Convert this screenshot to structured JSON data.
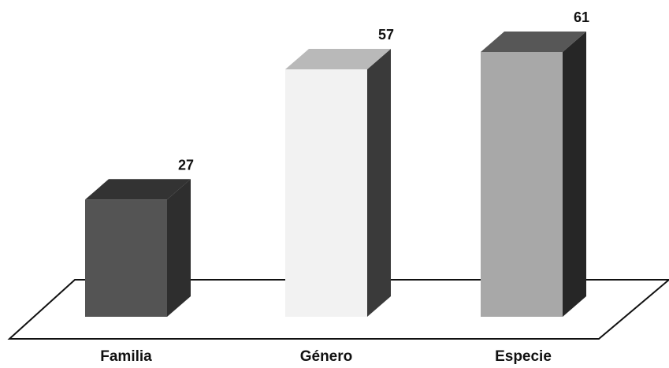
{
  "chart_data": {
    "type": "bar",
    "style": "3d",
    "categories": [
      "Familia",
      "Género",
      "Especie"
    ],
    "values": [
      27,
      57,
      61
    ],
    "data_labels": [
      "27",
      "57",
      "61"
    ],
    "colors": [
      "#545454",
      "#f2f2f2",
      "#a8a8a8"
    ],
    "side_colors": [
      "#2e2e2e",
      "#3a3a3a",
      "#262626"
    ],
    "top_colors": [
      "#333333",
      "#b9b9b9",
      "#575757"
    ],
    "title": "",
    "xlabel": "",
    "ylabel": "",
    "grid": false,
    "legend": "none",
    "ylim": [
      0,
      61
    ]
  }
}
